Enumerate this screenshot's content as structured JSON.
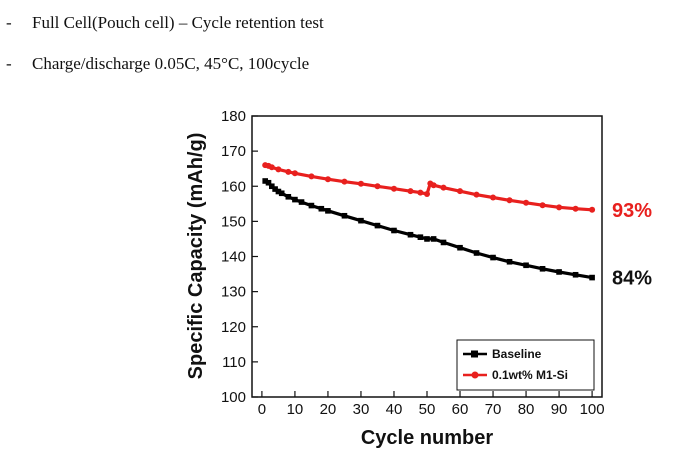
{
  "bullets": [
    {
      "dash": "-",
      "text": "Full Cell(Pouch cell) – Cycle retention test"
    },
    {
      "dash": "-",
      "text": "Charge/discharge 0.05C,  45°C, 100cycle"
    }
  ],
  "chart_data": {
    "type": "line",
    "xlabel": "Cycle number",
    "ylabel": "Specific Capacity (mAh/g)",
    "xlim": [
      -3,
      103
    ],
    "ylim": [
      100,
      180
    ],
    "xticks": [
      0,
      10,
      20,
      30,
      40,
      50,
      60,
      70,
      80,
      90,
      100
    ],
    "yticks": [
      100,
      110,
      120,
      130,
      140,
      150,
      160,
      170,
      180
    ],
    "grid": false,
    "legend": "bottom-right",
    "series": [
      {
        "name": "Baseline",
        "color": "#000000",
        "marker": "square",
        "x": [
          1,
          2,
          3,
          4,
          5,
          6,
          8,
          10,
          12,
          15,
          18,
          20,
          25,
          30,
          35,
          40,
          45,
          48,
          50,
          52,
          55,
          60,
          65,
          70,
          75,
          80,
          85,
          90,
          95,
          100
        ],
        "y": [
          161.5,
          161,
          160,
          159.2,
          158.5,
          158,
          157,
          156.2,
          155.5,
          154.5,
          153.6,
          153,
          151.6,
          150.2,
          148.8,
          147.4,
          146.2,
          145.5,
          145,
          145,
          144,
          142.5,
          141,
          139.7,
          138.5,
          137.5,
          136.5,
          135.6,
          134.8,
          134
        ]
      },
      {
        "name": "0.1wt% M1-Si",
        "color": "#e8201e",
        "marker": "circle",
        "x": [
          1,
          2,
          3,
          5,
          8,
          10,
          15,
          20,
          25,
          30,
          35,
          40,
          45,
          48,
          50,
          51,
          52,
          55,
          60,
          65,
          70,
          75,
          80,
          85,
          90,
          95,
          100
        ],
        "y": [
          166,
          165.8,
          165.4,
          164.8,
          164.1,
          163.7,
          162.8,
          162,
          161.3,
          160.7,
          160,
          159.3,
          158.6,
          158.2,
          157.8,
          160.8,
          160.3,
          159.6,
          158.6,
          157.6,
          156.8,
          156,
          155.3,
          154.6,
          154,
          153.6,
          153.3
        ]
      }
    ],
    "annotations": [
      {
        "text": "93%",
        "color": "#e8201e",
        "y": 153.3
      },
      {
        "text": "84%",
        "color": "#111111",
        "y": 134
      }
    ]
  }
}
